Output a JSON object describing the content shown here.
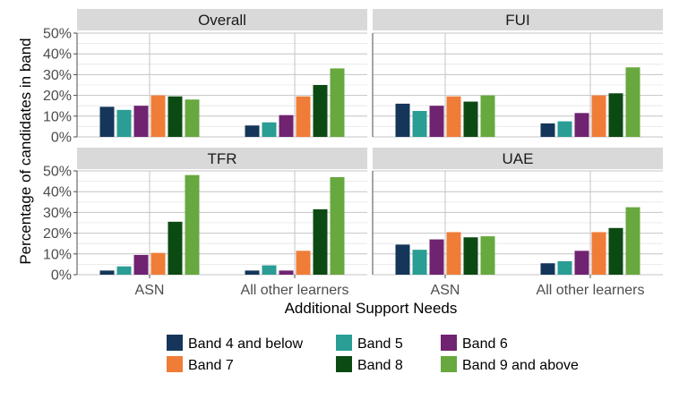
{
  "chart_data": {
    "type": "bar",
    "layout": "facet-grid-2x2",
    "xlabel": "Additional Support Needs",
    "ylabel": "Percentage of candidates in band",
    "ylim": [
      0,
      50
    ],
    "y_ticks": [
      "0%",
      "10%",
      "20%",
      "30%",
      "40%",
      "50%"
    ],
    "categories": [
      "ASN",
      "All other learners"
    ],
    "grid": true,
    "legend_position": "bottom",
    "series": [
      {
        "name": "Band 4 and below",
        "color": "#15365a"
      },
      {
        "name": "Band 5",
        "color": "#2a9d94"
      },
      {
        "name": "Band 6",
        "color": "#6f2370"
      },
      {
        "name": "Band 7",
        "color": "#ef7d38"
      },
      {
        "name": "Band 8",
        "color": "#0c4a13"
      },
      {
        "name": "Band 9 and above",
        "color": "#67a83f"
      }
    ],
    "panels": [
      {
        "title": "Overall",
        "values": [
          [
            14.5,
            13,
            15,
            20,
            19.5,
            18
          ],
          [
            5.5,
            7,
            10.5,
            19.5,
            25,
            33
          ]
        ]
      },
      {
        "title": "FUI",
        "values": [
          [
            16,
            12.5,
            15,
            19.5,
            17,
            20
          ],
          [
            6.5,
            7.5,
            11.5,
            20,
            21,
            33.5
          ]
        ]
      },
      {
        "title": "TFR",
        "values": [
          [
            2,
            4,
            9.5,
            10.5,
            25.5,
            48
          ],
          [
            2,
            4.5,
            2,
            11.5,
            31.5,
            47
          ]
        ]
      },
      {
        "title": "UAE",
        "values": [
          [
            14.5,
            12,
            17,
            20.5,
            18,
            18.5
          ],
          [
            5.5,
            6.5,
            11.5,
            20.5,
            22.5,
            32.5
          ]
        ]
      }
    ]
  }
}
